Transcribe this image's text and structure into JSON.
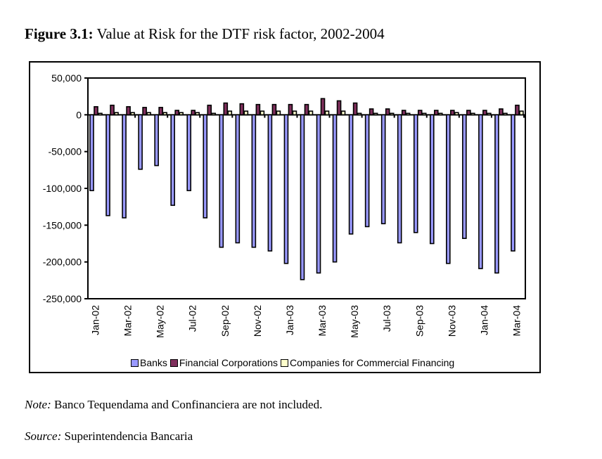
{
  "figure": {
    "label": "Figure 3.1:",
    "caption": "Value at Risk for the DTF risk factor, 2002-2004"
  },
  "note": {
    "label": "Note:",
    "text": "Banco Tequendama and Confinanciera are not included."
  },
  "source": {
    "label": "Source:",
    "text": "Superintendencia Bancaria"
  },
  "chart_data": {
    "type": "bar",
    "title": "Value at Risk for the DTF risk factor, 2002-2004",
    "xlabel": "",
    "ylabel": "",
    "ylim": [
      -250000,
      50000
    ],
    "yticks": [
      50000,
      0,
      -50000,
      -100000,
      -150000,
      -200000,
      -250000
    ],
    "ytick_labels": [
      "50,000",
      "0",
      "-50,000",
      "-100,000",
      "-150,000",
      "-200,000",
      "-250,000"
    ],
    "grid": false,
    "legend_position": "bottom",
    "categories": [
      "Jan-02",
      "Feb-02",
      "Mar-02",
      "Apr-02",
      "May-02",
      "Jun-02",
      "Jul-02",
      "Aug-02",
      "Sep-02",
      "Oct-02",
      "Nov-02",
      "Dec-02",
      "Jan-03",
      "Feb-03",
      "Mar-03",
      "Apr-03",
      "May-03",
      "Jun-03",
      "Jul-03",
      "Aug-03",
      "Sep-03",
      "Oct-03",
      "Nov-03",
      "Dec-03",
      "Jan-04",
      "Feb-04",
      "Mar-04"
    ],
    "xtick_labels": [
      "Jan-02",
      "",
      "Mar-02",
      "",
      "May-02",
      "",
      "Jul-02",
      "",
      "Sep-02",
      "",
      "Nov-02",
      "",
      "Jan-03",
      "",
      "Mar-03",
      "",
      "May-03",
      "",
      "Jul-03",
      "",
      "Sep-03",
      "",
      "Nov-03",
      "",
      "Jan-04",
      "",
      "Mar-04"
    ],
    "series": [
      {
        "name": "Banks",
        "color": "#9999ff",
        "values": [
          -103000,
          -137000,
          -140000,
          -74000,
          -69000,
          -123000,
          -103000,
          -140000,
          -180000,
          -174000,
          -180000,
          -185000,
          -202000,
          -224000,
          -215000,
          -200000,
          -162000,
          -152000,
          -148000,
          -174000,
          -160000,
          -175000,
          -202000,
          -168000,
          -209000,
          -215000,
          -185000
        ]
      },
      {
        "name": "Financial Corporations",
        "color": "#7f2f5c",
        "values": [
          11000,
          13000,
          11000,
          10000,
          10000,
          6000,
          6000,
          13000,
          16000,
          15000,
          14000,
          14000,
          14000,
          14000,
          22000,
          19000,
          16000,
          8000,
          8000,
          6000,
          6000,
          6000,
          6000,
          6000,
          6000,
          8000,
          13000
        ]
      },
      {
        "name": "Companies for Commercial Financing",
        "color": "#ffffcc",
        "values": [
          2000,
          3000,
          3000,
          3000,
          3000,
          3000,
          3000,
          2000,
          5000,
          5000,
          5000,
          5000,
          5000,
          5000,
          5000,
          5000,
          2000,
          2000,
          2000,
          2000,
          2000,
          2000,
          3000,
          2000,
          2000,
          2000,
          5000
        ]
      },
      {
        "name": "_negative_stub",
        "color": "#000000",
        "values": [
          0,
          0,
          -4000,
          0,
          -4000,
          0,
          -4000,
          0,
          -4000,
          0,
          -4000,
          0,
          -4000,
          0,
          -4000,
          0,
          -4000,
          0,
          -4000,
          0,
          -4000,
          0,
          -4000,
          0,
          -4000,
          0,
          -4000
        ]
      }
    ]
  },
  "legend": {
    "items": [
      {
        "label": "Banks",
        "color": "#9999ff"
      },
      {
        "label": "Financial Corporations",
        "color": "#7f2f5c"
      },
      {
        "label": "Companies for Commercial Financing",
        "color": "#ffffcc"
      }
    ]
  }
}
